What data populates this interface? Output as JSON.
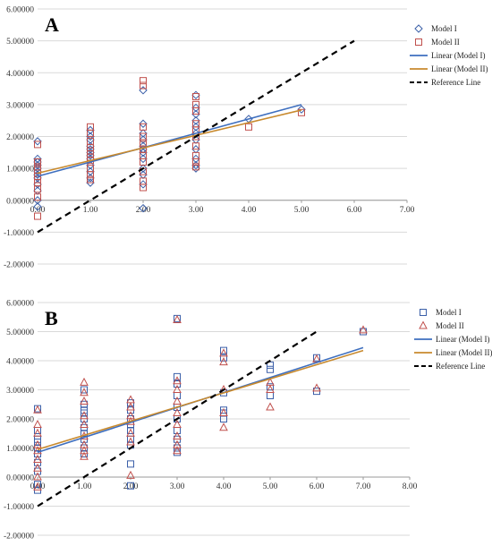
{
  "chart_data": [
    {
      "type": "scatter",
      "panel": "A",
      "title": "",
      "xlabel": "",
      "ylabel": "",
      "xlim": [
        0,
        7
      ],
      "ylim": [
        -2,
        6
      ],
      "xticks": [
        "0.00",
        "1.00",
        "2.00",
        "3.00",
        "4.00",
        "5.00",
        "6.00",
        "7.00"
      ],
      "yticks": [
        "-2.00000",
        "-1.00000",
        "0.00000",
        "1.00000",
        "2.00000",
        "3.00000",
        "4.00000",
        "5.00000",
        "6.00000"
      ],
      "grid": true,
      "legend_position": "right",
      "series": [
        {
          "name": "Model I",
          "marker": "diamond",
          "color": "#3b5fa8",
          "points": [
            [
              0,
              1.85
            ],
            [
              0,
              1.3
            ],
            [
              0,
              1.1
            ],
            [
              0,
              0.9
            ],
            [
              0,
              0.7
            ],
            [
              0,
              0.5
            ],
            [
              0,
              0.3
            ],
            [
              0,
              0.0
            ],
            [
              0,
              -0.2
            ],
            [
              0,
              1.0
            ],
            [
              0,
              0.8
            ],
            [
              0,
              1.2
            ],
            [
              1,
              2.2
            ],
            [
              1,
              1.9
            ],
            [
              1,
              1.7
            ],
            [
              1,
              1.5
            ],
            [
              1,
              1.3
            ],
            [
              1,
              1.1
            ],
            [
              1,
              0.9
            ],
            [
              1,
              0.7
            ],
            [
              1,
              0.55
            ],
            [
              1,
              1.6
            ],
            [
              1,
              1.4
            ],
            [
              1,
              2.0
            ],
            [
              2,
              3.45
            ],
            [
              2,
              2.4
            ],
            [
              2,
              2.1
            ],
            [
              2,
              1.9
            ],
            [
              2,
              1.7
            ],
            [
              2,
              1.5
            ],
            [
              2,
              1.3
            ],
            [
              2,
              1.0
            ],
            [
              2,
              0.8
            ],
            [
              2,
              0.5
            ],
            [
              2,
              -0.25
            ],
            [
              2,
              1.6
            ],
            [
              3,
              3.3
            ],
            [
              3,
              2.9
            ],
            [
              3,
              2.5
            ],
            [
              3,
              2.3
            ],
            [
              3,
              2.1
            ],
            [
              3,
              1.9
            ],
            [
              3,
              1.6
            ],
            [
              3,
              1.3
            ],
            [
              3,
              1.1
            ],
            [
              3,
              1.0
            ],
            [
              3,
              2.7
            ],
            [
              4,
              2.55
            ],
            [
              5,
              2.85
            ]
          ]
        },
        {
          "name": "Model II",
          "marker": "square",
          "color": "#c0504d",
          "points": [
            [
              0,
              1.75
            ],
            [
              0,
              1.2
            ],
            [
              0,
              0.95
            ],
            [
              0,
              0.75
            ],
            [
              0,
              0.55
            ],
            [
              0,
              0.35
            ],
            [
              0,
              0.1
            ],
            [
              0,
              -0.5
            ],
            [
              0,
              1.05
            ],
            [
              0,
              0.65
            ],
            [
              1,
              2.3
            ],
            [
              1,
              2.1
            ],
            [
              1,
              1.85
            ],
            [
              1,
              1.65
            ],
            [
              1,
              1.45
            ],
            [
              1,
              1.25
            ],
            [
              1,
              1.0
            ],
            [
              1,
              0.8
            ],
            [
              1,
              0.65
            ],
            [
              1,
              1.55
            ],
            [
              1,
              1.35
            ],
            [
              2,
              3.75
            ],
            [
              2,
              3.6
            ],
            [
              2,
              2.3
            ],
            [
              2,
              2.0
            ],
            [
              2,
              1.8
            ],
            [
              2,
              1.6
            ],
            [
              2,
              1.4
            ],
            [
              2,
              1.2
            ],
            [
              2,
              0.9
            ],
            [
              2,
              0.6
            ],
            [
              2,
              0.4
            ],
            [
              2,
              1.75
            ],
            [
              3,
              3.25
            ],
            [
              3,
              3.0
            ],
            [
              3,
              2.8
            ],
            [
              3,
              2.4
            ],
            [
              3,
              2.2
            ],
            [
              3,
              2.0
            ],
            [
              3,
              1.7
            ],
            [
              3,
              1.4
            ],
            [
              3,
              1.2
            ],
            [
              3,
              1.05
            ],
            [
              4,
              2.3
            ],
            [
              5,
              2.75
            ]
          ]
        },
        {
          "name": "Linear (Model I)",
          "type": "line",
          "color": "#3e6fbf",
          "x": [
            0,
            5
          ],
          "y": [
            0.75,
            3.0
          ]
        },
        {
          "name": "Linear (Model II)",
          "type": "line",
          "color": "#c88a2e",
          "x": [
            0,
            5
          ],
          "y": [
            0.85,
            2.83
          ]
        },
        {
          "name": "Reference Line",
          "type": "line",
          "style": "dashed",
          "color": "#000000",
          "x": [
            0,
            6
          ],
          "y": [
            -1,
            5
          ]
        }
      ]
    },
    {
      "type": "scatter",
      "panel": "B",
      "title": "",
      "xlabel": "",
      "ylabel": "",
      "xlim": [
        0,
        8
      ],
      "ylim": [
        -2,
        6
      ],
      "xticks": [
        "0.00",
        "1.00",
        "2.00",
        "3.00",
        "4.00",
        "5.00",
        "6.00",
        "7.00",
        "8.00"
      ],
      "yticks": [
        "-2.00000",
        "-1.00000",
        "0.00000",
        "1.00000",
        "2.00000",
        "3.00000",
        "4.00000",
        "5.00000",
        "6.00000"
      ],
      "grid": true,
      "legend_position": "right",
      "series": [
        {
          "name": "Model I",
          "marker": "square",
          "color": "#3b5fa8",
          "points": [
            [
              0,
              2.35
            ],
            [
              0,
              1.6
            ],
            [
              0,
              1.3
            ],
            [
              0,
              1.0
            ],
            [
              0,
              0.8
            ],
            [
              0,
              0.5
            ],
            [
              0,
              0.2
            ],
            [
              0,
              -0.25
            ],
            [
              0,
              -0.45
            ],
            [
              0,
              1.2
            ],
            [
              1,
              3.0
            ],
            [
              1,
              2.5
            ],
            [
              1,
              2.2
            ],
            [
              1,
              2.0
            ],
            [
              1,
              1.7
            ],
            [
              1,
              1.5
            ],
            [
              1,
              1.3
            ],
            [
              1,
              1.0
            ],
            [
              1,
              0.8
            ],
            [
              1,
              2.3
            ],
            [
              2,
              2.55
            ],
            [
              2,
              2.3
            ],
            [
              2,
              2.0
            ],
            [
              2,
              1.8
            ],
            [
              2,
              1.6
            ],
            [
              2,
              1.3
            ],
            [
              2,
              1.1
            ],
            [
              2,
              0.45
            ],
            [
              2,
              -0.3
            ],
            [
              3,
              5.45
            ],
            [
              3,
              3.45
            ],
            [
              3,
              3.2
            ],
            [
              3,
              2.8
            ],
            [
              3,
              2.4
            ],
            [
              3,
              2.0
            ],
            [
              3,
              1.6
            ],
            [
              3,
              1.3
            ],
            [
              3,
              1.0
            ],
            [
              3,
              0.85
            ],
            [
              4,
              4.35
            ],
            [
              4,
              4.1
            ],
            [
              4,
              2.9
            ],
            [
              4,
              2.3
            ],
            [
              4,
              2.2
            ],
            [
              4,
              2.0
            ],
            [
              5,
              3.85
            ],
            [
              5,
              3.7
            ],
            [
              5,
              3.1
            ],
            [
              5,
              2.8
            ],
            [
              6,
              4.1
            ],
            [
              6,
              2.95
            ],
            [
              7,
              5.0
            ]
          ]
        },
        {
          "name": "Model II",
          "marker": "triangle",
          "color": "#c0504d",
          "points": [
            [
              0,
              2.3
            ],
            [
              0,
              1.8
            ],
            [
              0,
              1.5
            ],
            [
              0,
              1.1
            ],
            [
              0,
              0.9
            ],
            [
              0,
              0.6
            ],
            [
              0,
              0.3
            ],
            [
              0,
              0.0
            ],
            [
              0,
              -0.35
            ],
            [
              1,
              3.25
            ],
            [
              1,
              2.9
            ],
            [
              1,
              2.6
            ],
            [
              1,
              2.1
            ],
            [
              1,
              1.8
            ],
            [
              1,
              1.4
            ],
            [
              1,
              1.1
            ],
            [
              1,
              0.9
            ],
            [
              1,
              0.7
            ],
            [
              2,
              2.65
            ],
            [
              2,
              2.4
            ],
            [
              2,
              2.1
            ],
            [
              2,
              1.9
            ],
            [
              2,
              1.5
            ],
            [
              2,
              1.2
            ],
            [
              2,
              0.05
            ],
            [
              3,
              5.4
            ],
            [
              3,
              3.3
            ],
            [
              3,
              3.0
            ],
            [
              3,
              2.6
            ],
            [
              3,
              2.2
            ],
            [
              3,
              1.8
            ],
            [
              3,
              1.4
            ],
            [
              3,
              1.1
            ],
            [
              3,
              0.9
            ],
            [
              4,
              4.25
            ],
            [
              4,
              3.95
            ],
            [
              4,
              3.0
            ],
            [
              4,
              2.2
            ],
            [
              4,
              1.7
            ],
            [
              5,
              3.25
            ],
            [
              5,
              3.0
            ],
            [
              5,
              2.4
            ],
            [
              6,
              4.05
            ],
            [
              6,
              3.05
            ],
            [
              7,
              5.05
            ]
          ]
        },
        {
          "name": "Linear (Model I)",
          "type": "line",
          "color": "#3e6fbf",
          "x": [
            0,
            7
          ],
          "y": [
            0.85,
            4.45
          ]
        },
        {
          "name": "Linear (Model II)",
          "type": "line",
          "color": "#c88a2e",
          "x": [
            0,
            7
          ],
          "y": [
            0.95,
            4.35
          ]
        },
        {
          "name": "Reference Line",
          "type": "line",
          "style": "dashed",
          "color": "#000000",
          "x": [
            0,
            6
          ],
          "y": [
            -1,
            5
          ]
        }
      ]
    }
  ]
}
